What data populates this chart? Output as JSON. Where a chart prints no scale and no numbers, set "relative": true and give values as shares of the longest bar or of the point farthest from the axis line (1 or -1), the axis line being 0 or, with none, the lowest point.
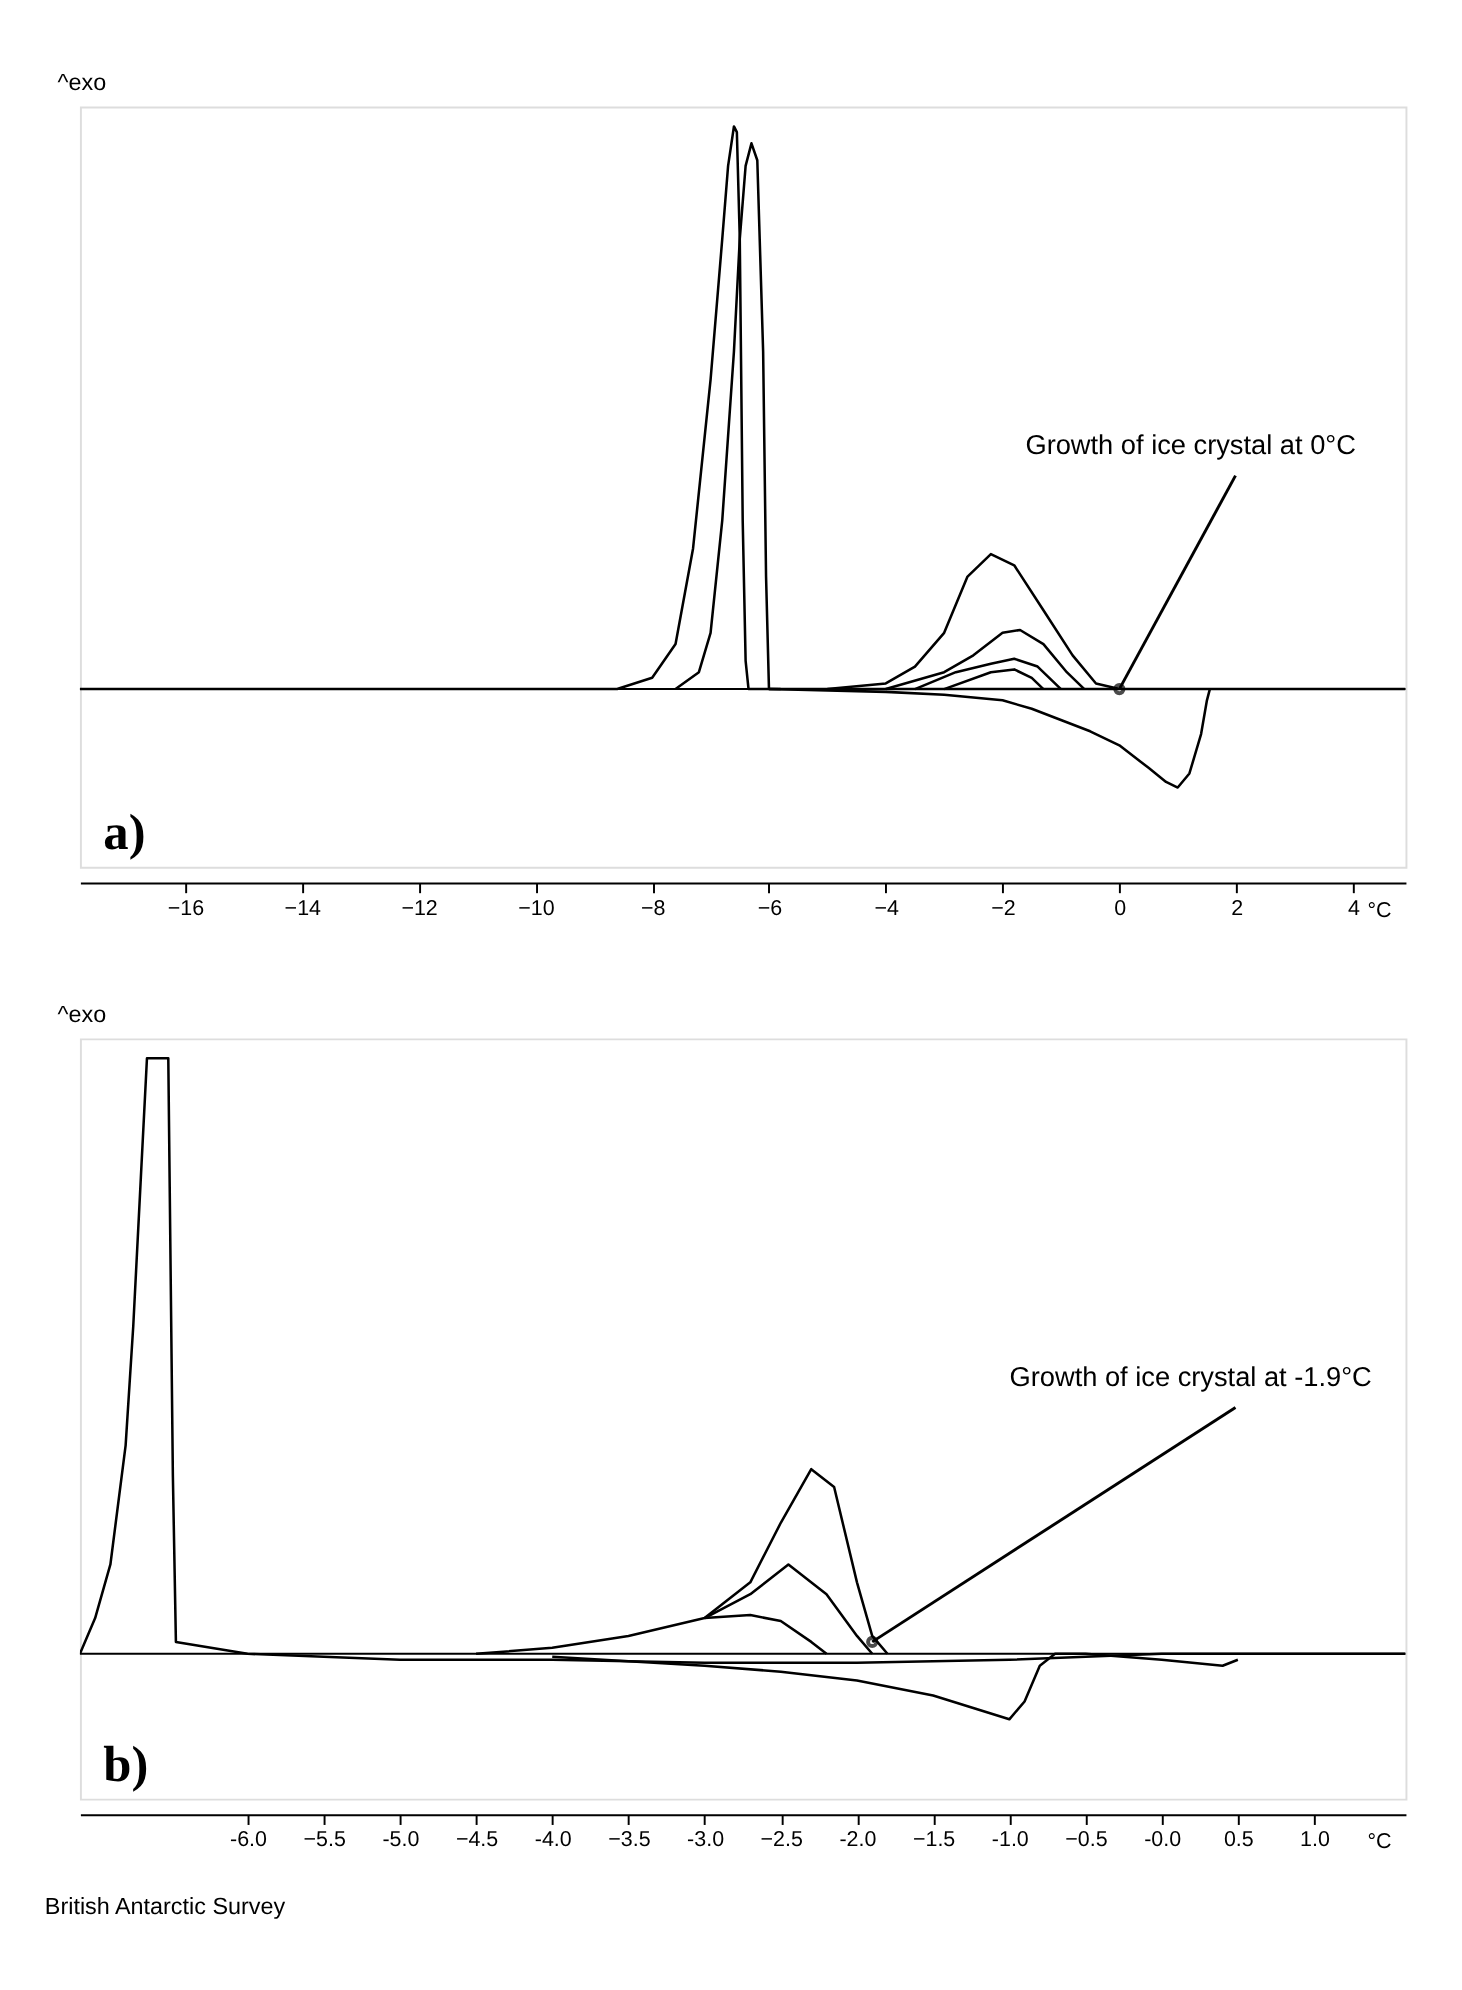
{
  "chart_data": [
    {
      "type": "line",
      "relative": true,
      "ylabel": "^exo",
      "xlabel": "°C",
      "xlim": [
        -17.8,
        4.9
      ],
      "xticks": [
        -16,
        -14,
        -12,
        -10,
        -8,
        -6,
        -4,
        -2,
        0,
        2,
        4
      ],
      "grid": false,
      "legend": false,
      "marker": "none",
      "line_style": "solid",
      "annotations": [
        {
          "text": "Growth of ice crystal at 0°C",
          "x": 0,
          "y": 0
        },
        "a)"
      ],
      "series": [
        {
          "color": "#000000",
          "x": [
            -17.8,
            -10,
            -8.6,
            -8,
            -7.6,
            -7.3,
            -7.0,
            -6.8,
            -6.7,
            -6.6,
            -6.55,
            -6.5,
            -6.45,
            -6.4,
            -6.35,
            -6.3,
            -5,
            -4,
            -3,
            -2,
            -1,
            0,
            1,
            2,
            3,
            4,
            4.9
          ],
          "values": [
            0,
            0,
            0,
            0.02,
            0.08,
            0.25,
            0.55,
            0.8,
            0.93,
            1.0,
            0.99,
            0.8,
            0.3,
            0.05,
            0,
            0,
            0,
            0,
            0,
            0,
            0,
            0,
            0,
            0,
            0,
            0,
            0
          ]
        },
        {
          "color": "#000000",
          "x": [
            -7.6,
            -7.2,
            -7.0,
            -6.8,
            -6.6,
            -6.5,
            -6.4,
            -6.3,
            -6.2,
            -6.1,
            -6.05,
            -6.0,
            -5.8
          ],
          "values": [
            0,
            0.03,
            0.1,
            0.3,
            0.6,
            0.8,
            0.93,
            0.97,
            0.94,
            0.6,
            0.2,
            0,
            0
          ]
        },
        {
          "color": "#000000",
          "x": [
            -5,
            -4,
            -3.5,
            -3,
            -2.6,
            -2.2,
            -1.8,
            -1.3,
            -0.8,
            -0.4,
            0
          ],
          "values": [
            0,
            0.01,
            0.04,
            0.1,
            0.2,
            0.24,
            0.22,
            0.14,
            0.06,
            0.01,
            0
          ]
        },
        {
          "color": "#000000",
          "x": [
            -4,
            -3,
            -2.5,
            -2,
            -1.7,
            -1.3,
            -0.9,
            -0.6
          ],
          "values": [
            0,
            0.03,
            0.06,
            0.1,
            0.105,
            0.08,
            0.03,
            0
          ]
        },
        {
          "color": "#000000",
          "x": [
            -3.5,
            -2.8,
            -2.2,
            -1.8,
            -1.4,
            -1.0
          ],
          "values": [
            0,
            0.03,
            0.045,
            0.054,
            0.04,
            0
          ]
        },
        {
          "color": "#000000",
          "x": [
            -3,
            -2.2,
            -1.8,
            -1.5,
            -1.3
          ],
          "values": [
            0,
            0.03,
            0.035,
            0.02,
            0
          ]
        },
        {
          "color": "#000000",
          "x": [
            -6,
            -4,
            -3,
            -2,
            -1.5,
            -1,
            -0.5,
            0,
            0.5,
            0.8,
            1.0,
            1.2,
            1.4,
            1.5,
            1.55
          ],
          "values": [
            0,
            -0.005,
            -0.01,
            -0.02,
            -0.035,
            -0.055,
            -0.075,
            -0.1,
            -0.14,
            -0.165,
            -0.175,
            -0.15,
            -0.08,
            -0.02,
            0
          ]
        }
      ]
    },
    {
      "type": "line",
      "relative": true,
      "ylabel": "^exo",
      "xlabel": "°C",
      "xlim": [
        -7.1,
        1.6
      ],
      "xticks": [
        {
          "value": -6,
          "label": "-6.0"
        },
        -5.5,
        {
          "value": -5,
          "label": "-5.0"
        },
        -4.5,
        {
          "value": -4,
          "label": "-4.0"
        },
        -3.5,
        {
          "value": -3,
          "label": "-3.0"
        },
        -2.5,
        {
          "value": -2,
          "label": "-2.0"
        },
        -1.5,
        {
          "value": -1,
          "label": "-1.0"
        },
        -0.5,
        {
          "value": 0,
          "label": "-0.0"
        },
        0.5,
        {
          "value": 1,
          "label": "1.0"
        }
      ],
      "grid": false,
      "legend": false,
      "marker": "none",
      "line_style": "solid",
      "annotations": [
        {
          "text": "Growth of ice crystal at -1.9°C",
          "x": -1.9,
          "y": 0.02
        },
        "b)",
        "British Antarctic Survey"
      ],
      "series": [
        {
          "color": "#000000",
          "x": [
            -7.1,
            -7.0,
            -6.9,
            -6.8,
            -6.75,
            -6.7,
            -6.66,
            -6.52,
            -6.49,
            -6.47,
            -6,
            -5,
            -4,
            -3,
            -2,
            -1,
            0,
            1,
            1.6
          ],
          "values": [
            0,
            0.06,
            0.15,
            0.35,
            0.55,
            0.8,
            1.0,
            1.0,
            0.3,
            0.02,
            0,
            -0.01,
            -0.01,
            -0.015,
            -0.015,
            -0.01,
            0,
            0,
            0
          ]
        },
        {
          "color": "#000000",
          "x": [
            -4.5,
            -4,
            -3.5,
            -3,
            -2.7,
            -2.5,
            -2.3,
            -2.15,
            -2.0,
            -1.9,
            -1.8
          ],
          "values": [
            0,
            0.01,
            0.03,
            0.06,
            0.12,
            0.22,
            0.31,
            0.28,
            0.12,
            0.03,
            0
          ]
        },
        {
          "color": "#000000",
          "x": [
            -3,
            -2.7,
            -2.45,
            -2.2,
            -2.0,
            -1.9
          ],
          "values": [
            0.06,
            0.1,
            0.15,
            0.1,
            0.03,
            0
          ]
        },
        {
          "color": "#000000",
          "x": [
            -3,
            -2.7,
            -2.5,
            -2.3,
            -2.2
          ],
          "values": [
            0.06,
            0.065,
            0.055,
            0.02,
            0
          ]
        },
        {
          "color": "#000000",
          "x": [
            -4,
            -3,
            -2.5,
            -2,
            -1.5,
            -1.0,
            -0.9,
            -0.8,
            -0.7,
            -0.5,
            0,
            0.4,
            0.5
          ],
          "values": [
            -0.005,
            -0.02,
            -0.03,
            -0.045,
            -0.07,
            -0.11,
            -0.08,
            -0.02,
            0,
            0,
            -0.01,
            -0.02,
            -0.01
          ]
        }
      ]
    }
  ]
}
